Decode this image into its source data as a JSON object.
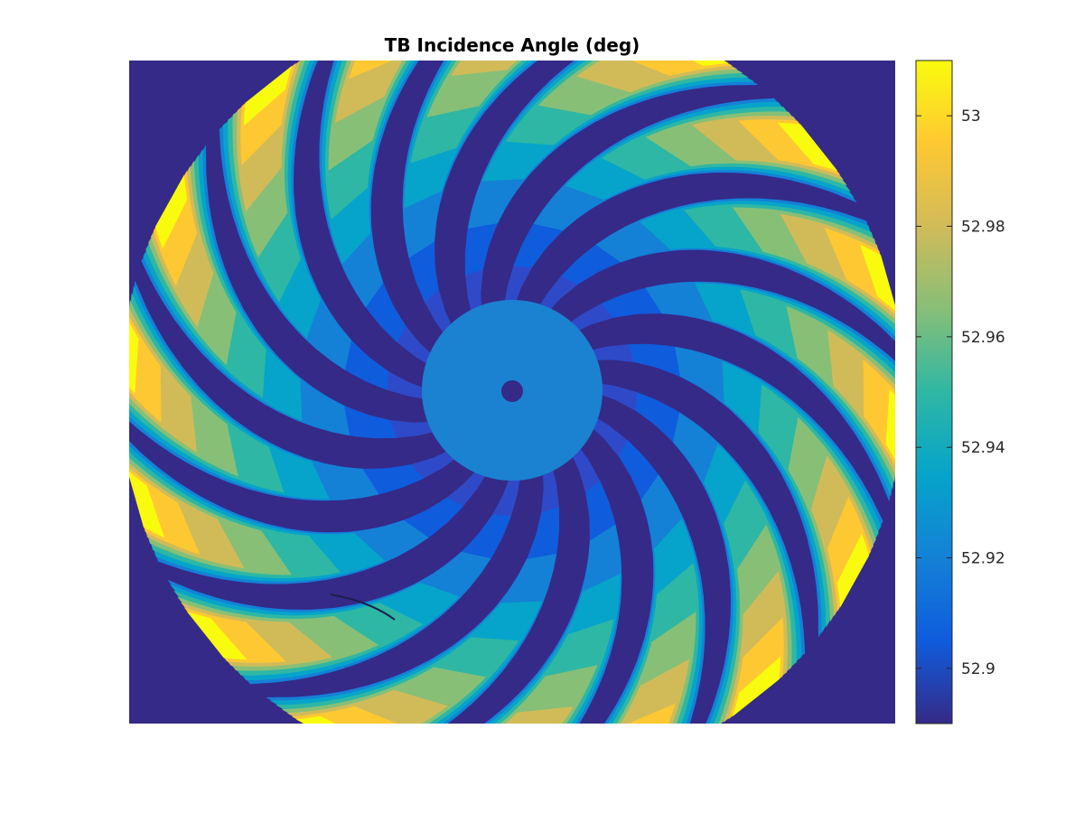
{
  "chart_data": {
    "type": "heatmap",
    "title": "TB Incidence Angle (deg)",
    "xlabel": "",
    "ylabel": "",
    "colormap": "parula",
    "clim": [
      52.89,
      53.01
    ],
    "colorbar": {
      "location": "right",
      "ticks": [
        52.9,
        52.92,
        52.94,
        52.96,
        52.98,
        53.0
      ],
      "tick_labels": [
        "52.9",
        "52.92",
        "52.94",
        "52.96",
        "52.98",
        "53"
      ]
    },
    "background_value": 52.89,
    "center_value": 52.925,
    "swath_count": 16,
    "swath_edge_value": 53.0,
    "grid": false
  },
  "colors": {
    "background": "#352A87",
    "center": "#1B82D2",
    "edge": "#F9FB0E"
  }
}
